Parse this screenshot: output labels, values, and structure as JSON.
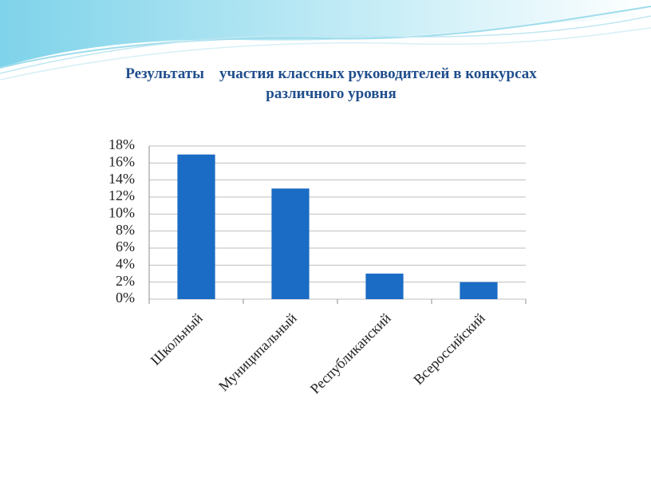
{
  "chart_data": {
    "type": "bar",
    "title": "Результаты    участия классных руководителей в конкурсах различного уровня",
    "categories": [
      "Школьный",
      "Муниципальный",
      "Республиканский",
      "Всероссийский"
    ],
    "values": [
      17,
      13,
      3,
      2
    ],
    "color": "#1a6cc4",
    "ylim": [
      0,
      18
    ],
    "yticks": [
      {
        "value": 0,
        "label": "0%"
      },
      {
        "value": 2,
        "label": "2%"
      },
      {
        "value": 4,
        "label": "4%"
      },
      {
        "value": 6,
        "label": "6%"
      },
      {
        "value": 8,
        "label": "8%"
      },
      {
        "value": 10,
        "label": "10%"
      },
      {
        "value": 12,
        "label": "12%"
      },
      {
        "value": 14,
        "label": "14%"
      },
      {
        "value": 16,
        "label": "16%"
      },
      {
        "value": 18,
        "label": "18%"
      }
    ],
    "grid": true
  }
}
